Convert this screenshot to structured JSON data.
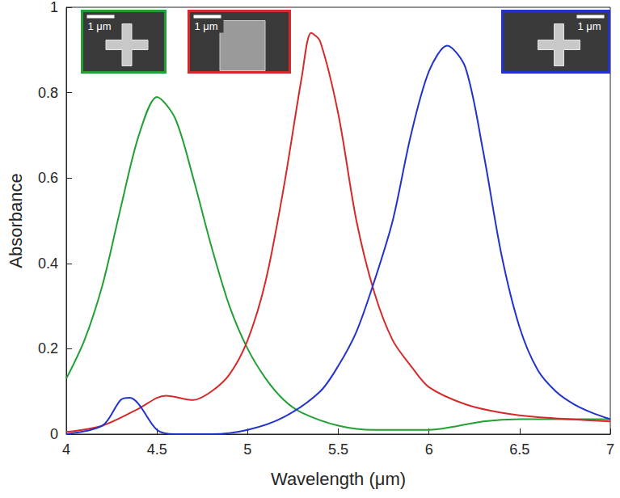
{
  "chart_data": {
    "type": "line",
    "x_label": "Wavelength (μm)",
    "y_label": "Absorbance",
    "xlim": [
      4,
      7
    ],
    "xticks": [
      4,
      4.5,
      5,
      5.5,
      6,
      6.5,
      7
    ],
    "ylim": [
      0,
      1
    ],
    "yticks": [
      0,
      0.2,
      0.4,
      0.6,
      0.8,
      1
    ],
    "grid": false,
    "series": [
      {
        "color": "#22a033",
        "x": [
          4.0,
          4.1,
          4.2,
          4.3,
          4.4,
          4.5,
          4.6,
          4.7,
          4.8,
          4.9,
          5.0,
          5.1,
          5.2,
          5.3,
          5.5,
          5.7,
          6.0,
          6.3,
          6.5,
          7.0
        ],
        "values": [
          0.13,
          0.22,
          0.35,
          0.53,
          0.7,
          0.79,
          0.74,
          0.6,
          0.44,
          0.3,
          0.2,
          0.13,
          0.08,
          0.05,
          0.02,
          0.01,
          0.01,
          0.03,
          0.035,
          0.035
        ]
      },
      {
        "color": "#d42a2a",
        "x": [
          4.0,
          4.2,
          4.4,
          4.5,
          4.55,
          4.7,
          4.8,
          4.9,
          5.0,
          5.1,
          5.2,
          5.3,
          5.35,
          5.4,
          5.5,
          5.6,
          5.7,
          5.8,
          5.9,
          6.0,
          6.2,
          6.4,
          6.6,
          7.0
        ],
        "values": [
          0.005,
          0.02,
          0.06,
          0.085,
          0.09,
          0.08,
          0.1,
          0.14,
          0.22,
          0.36,
          0.58,
          0.84,
          0.94,
          0.92,
          0.75,
          0.5,
          0.33,
          0.22,
          0.16,
          0.11,
          0.07,
          0.05,
          0.04,
          0.03
        ]
      },
      {
        "color": "#2233cc",
        "x": [
          4.0,
          4.2,
          4.3,
          4.35,
          4.4,
          4.5,
          4.6,
          4.8,
          5.0,
          5.2,
          5.4,
          5.5,
          5.6,
          5.7,
          5.8,
          5.9,
          6.0,
          6.1,
          6.2,
          6.3,
          6.4,
          6.5,
          6.6,
          6.7,
          6.8,
          6.9,
          7.0
        ],
        "values": [
          0.0,
          0.02,
          0.08,
          0.085,
          0.07,
          0.01,
          0.0,
          0.0,
          0.01,
          0.04,
          0.1,
          0.16,
          0.24,
          0.36,
          0.5,
          0.7,
          0.85,
          0.91,
          0.86,
          0.66,
          0.42,
          0.25,
          0.15,
          0.1,
          0.07,
          0.05,
          0.035
        ]
      }
    ],
    "annotations": [
      {
        "text": "1 μm",
        "color": "#22a033",
        "marker": "cross"
      },
      {
        "text": "1 μm",
        "color": "#d42a2a",
        "marker": "square"
      },
      {
        "text": "1 μm",
        "color": "#2233cc",
        "marker": "cross"
      }
    ]
  }
}
